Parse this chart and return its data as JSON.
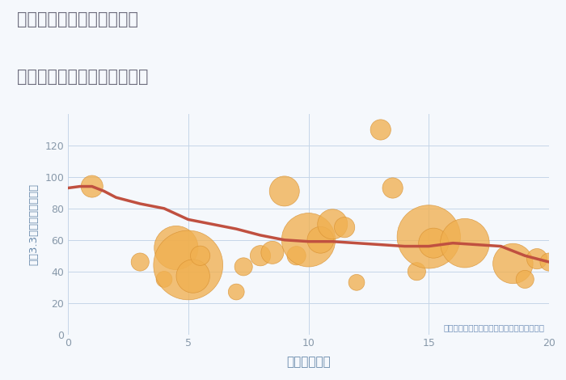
{
  "title_line1": "大阪府東大阪市南四条町の",
  "title_line2": "駅距離別中古マンション価格",
  "xlabel": "駅距離（分）",
  "ylabel": "坪（3.3㎡）単価（万円）",
  "background_color": "#f5f8fc",
  "plot_bg_color": "#f5f8fc",
  "annotation": "円の大きさは、取引のあった物件面積を示す",
  "xlim": [
    0,
    20
  ],
  "ylim": [
    0,
    140
  ],
  "yticks": [
    0,
    20,
    40,
    60,
    80,
    100,
    120
  ],
  "xticks": [
    0,
    5,
    10,
    15,
    20
  ],
  "scatter_x": [
    1.0,
    3.0,
    4.0,
    4.5,
    5.0,
    5.2,
    5.5,
    7.0,
    7.3,
    8.0,
    8.5,
    9.0,
    9.5,
    10.0,
    10.5,
    11.0,
    11.5,
    12.0,
    13.0,
    13.5,
    14.5,
    15.0,
    15.2,
    16.5,
    18.5,
    19.0,
    19.5,
    20.0
  ],
  "scatter_y": [
    94,
    46,
    35,
    55,
    44,
    37,
    50,
    27,
    43,
    50,
    52,
    91,
    50,
    60,
    60,
    70,
    68,
    33,
    130,
    93,
    40,
    62,
    58,
    58,
    45,
    35,
    48,
    46
  ],
  "scatter_size": [
    15,
    10,
    8,
    60,
    150,
    35,
    12,
    8,
    10,
    13,
    16,
    28,
    11,
    90,
    22,
    28,
    13,
    8,
    13,
    13,
    10,
    125,
    28,
    75,
    50,
    10,
    13,
    10
  ],
  "trend_x": [
    0,
    0.5,
    1.0,
    1.5,
    2.0,
    3.0,
    4.0,
    5.0,
    6.0,
    7.0,
    8.0,
    9.0,
    10.0,
    11.0,
    12.0,
    13.0,
    14.0,
    15.0,
    16.0,
    17.0,
    18.0,
    19.0,
    20.0
  ],
  "trend_y": [
    93,
    94,
    94,
    91,
    87,
    83,
    80,
    73,
    70,
    67,
    63,
    60,
    59,
    59,
    58,
    57,
    56,
    56,
    58,
    57,
    56,
    50,
    46
  ],
  "bubble_color": "#f0b050",
  "bubble_alpha": 0.78,
  "bubble_edge_color": "#d89030",
  "line_color": "#c05040",
  "line_width": 2.5,
  "grid_color": "#c5d5e8",
  "title_color": "#707080",
  "annotation_color": "#7090b8",
  "axis_label_color": "#6688aa",
  "tick_color": "#8899aa"
}
